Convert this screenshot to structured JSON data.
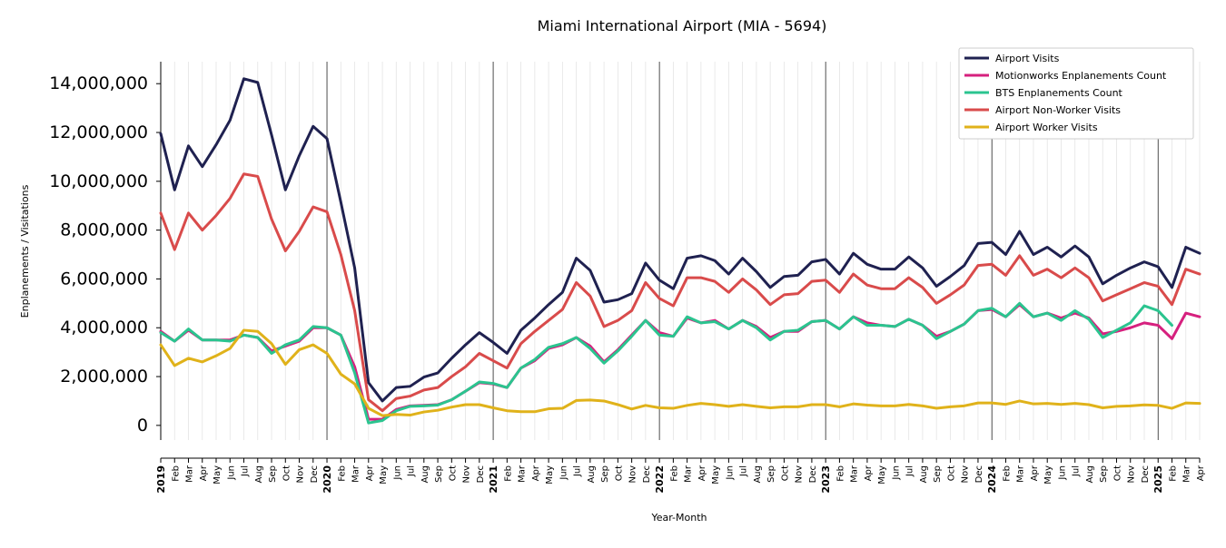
{
  "chart_data": {
    "type": "line",
    "title": "Miami International Airport (MIA - 5694)",
    "xlabel": "Year-Month",
    "ylabel": "Enplanements / Visitations",
    "ylim": [
      -600000,
      14900000
    ],
    "yticks": [
      0,
      2000000,
      4000000,
      6000000,
      8000000,
      10000000,
      12000000,
      14000000
    ],
    "ytick_labels": [
      "0",
      "2,000,000",
      "4,000,000",
      "6,000,000",
      "8,000,000",
      "10,000,000",
      "12,000,000",
      "14,000,000"
    ],
    "legend_position": "top-right",
    "grid": "vertical monthly lines, darker at year boundaries",
    "start_month": "2019-01",
    "x": [
      "2019",
      "Feb",
      "Mar",
      "Apr",
      "May",
      "Jun",
      "Jul",
      "Aug",
      "Sep",
      "Oct",
      "Nov",
      "Dec",
      "2020",
      "Feb",
      "Mar",
      "Apr",
      "May",
      "Jun",
      "Jul",
      "Aug",
      "Sep",
      "Oct",
      "Nov",
      "Dec",
      "2021",
      "Feb",
      "Mar",
      "Apr",
      "May",
      "Jun",
      "Jul",
      "Aug",
      "Sep",
      "Oct",
      "Nov",
      "Dec",
      "2022",
      "Feb",
      "Mar",
      "Apr",
      "May",
      "Jun",
      "Jul",
      "Aug",
      "Sep",
      "Oct",
      "Nov",
      "Dec",
      "2023",
      "Feb",
      "Mar",
      "Apr",
      "May",
      "Jun",
      "Jul",
      "Aug",
      "Sep",
      "Oct",
      "Nov",
      "Dec",
      "2024",
      "Feb",
      "Mar",
      "Apr",
      "May",
      "Jun",
      "Jul",
      "Aug",
      "Sep",
      "Oct",
      "Nov",
      "Dec",
      "2025",
      "Feb",
      "Mar",
      "Apr"
    ],
    "series": [
      {
        "name": "Airport Visits",
        "color": "#1f2150",
        "values": [
          11950000,
          9650000,
          11450000,
          10600000,
          11500000,
          12500000,
          14200000,
          14050000,
          11900000,
          9650000,
          11050000,
          12250000,
          11750000,
          9150000,
          6450000,
          1750000,
          1000000,
          1550000,
          1600000,
          1980000,
          2150000,
          2750000,
          3300000,
          3800000,
          3400000,
          2950000,
          3900000,
          4400000,
          4950000,
          5450000,
          6850000,
          6350000,
          5050000,
          5150000,
          5400000,
          6650000,
          5950000,
          5600000,
          6850000,
          6950000,
          6750000,
          6200000,
          6850000,
          6300000,
          5650000,
          6100000,
          6150000,
          6700000,
          6800000,
          6200000,
          7050000,
          6600000,
          6400000,
          6400000,
          6900000,
          6450000,
          5700000,
          6100000,
          6550000,
          7450000,
          7500000,
          7000000,
          7950000,
          7000000,
          7300000,
          6900000,
          7350000,
          6900000,
          5800000,
          6150000,
          6450000,
          6700000,
          6500000,
          5650000,
          7300000,
          7050000
        ]
      },
      {
        "name": "Motionworks Enplanements Count",
        "color": "#d6207e",
        "values": [
          3850000,
          3450000,
          3900000,
          3500000,
          3500000,
          3500000,
          3700000,
          3600000,
          3050000,
          3250000,
          3450000,
          4000000,
          4000000,
          3700000,
          2400000,
          250000,
          250000,
          650000,
          800000,
          820000,
          850000,
          1050000,
          1400000,
          1750000,
          1700000,
          1550000,
          2350000,
          2650000,
          3150000,
          3300000,
          3600000,
          3250000,
          2600000,
          3100000,
          3700000,
          4300000,
          3800000,
          3650000,
          4400000,
          4200000,
          4300000,
          3950000,
          4300000,
          4050000,
          3600000,
          3850000,
          3850000,
          4250000,
          4300000,
          3950000,
          4450000,
          4200000,
          4100000,
          4050000,
          4350000,
          4100000,
          3650000,
          3850000,
          4150000,
          4700000,
          4750000,
          4450000,
          4950000,
          4450000,
          4600000,
          4400000,
          4600000,
          4400000,
          3750000,
          3850000,
          4000000,
          4200000,
          4100000,
          3550000,
          4600000,
          4450000
        ]
      },
      {
        "name": "BTS Enplanements Count",
        "color": "#2bc48f",
        "values": [
          3800000,
          3450000,
          3950000,
          3500000,
          3500000,
          3450000,
          3700000,
          3600000,
          2950000,
          3300000,
          3500000,
          4050000,
          4000000,
          3700000,
          2150000,
          100000,
          200000,
          600000,
          780000,
          800000,
          830000,
          1050000,
          1400000,
          1780000,
          1720000,
          1550000,
          2350000,
          2700000,
          3200000,
          3350000,
          3600000,
          3150000,
          2550000,
          3050000,
          3650000,
          4300000,
          3700000,
          3650000,
          4450000,
          4200000,
          4250000,
          3950000,
          4300000,
          4000000,
          3500000,
          3850000,
          3900000,
          4250000,
          4300000,
          3950000,
          4450000,
          4100000,
          4100000,
          4050000,
          4350000,
          4100000,
          3550000,
          3850000,
          4150000,
          4700000,
          4800000,
          4450000,
          5000000,
          4450000,
          4600000,
          4300000,
          4700000,
          4350000,
          3600000,
          3900000,
          4200000,
          4900000,
          4700000,
          4100000,
          null,
          null
        ]
      },
      {
        "name": "Airport Non-Worker Visits",
        "color": "#d94b4b",
        "values": [
          8700000,
          7200000,
          8700000,
          8000000,
          8600000,
          9300000,
          10300000,
          10200000,
          8450000,
          7150000,
          7950000,
          8950000,
          8750000,
          7000000,
          4700000,
          1050000,
          600000,
          1100000,
          1200000,
          1450000,
          1550000,
          2000000,
          2400000,
          2950000,
          2650000,
          2350000,
          3350000,
          3850000,
          4300000,
          4750000,
          5850000,
          5300000,
          4050000,
          4300000,
          4700000,
          5850000,
          5200000,
          4900000,
          6050000,
          6050000,
          5900000,
          5450000,
          6000000,
          5550000,
          4950000,
          5350000,
          5400000,
          5900000,
          5950000,
          5450000,
          6200000,
          5750000,
          5600000,
          5600000,
          6050000,
          5650000,
          5000000,
          5350000,
          5750000,
          6550000,
          6600000,
          6150000,
          6950000,
          6150000,
          6400000,
          6050000,
          6450000,
          6050000,
          5100000,
          5350000,
          5600000,
          5850000,
          5700000,
          4950000,
          6400000,
          6200000
        ]
      },
      {
        "name": "Airport Worker Visits",
        "color": "#e0b21a",
        "values": [
          3300000,
          2450000,
          2750000,
          2600000,
          2850000,
          3150000,
          3900000,
          3850000,
          3350000,
          2500000,
          3100000,
          3300000,
          2950000,
          2100000,
          1700000,
          700000,
          400000,
          450000,
          420000,
          550000,
          620000,
          750000,
          850000,
          850000,
          720000,
          600000,
          560000,
          560000,
          680000,
          700000,
          1020000,
          1040000,
          1000000,
          850000,
          670000,
          820000,
          720000,
          700000,
          820000,
          900000,
          850000,
          780000,
          850000,
          780000,
          720000,
          760000,
          760000,
          850000,
          850000,
          760000,
          880000,
          830000,
          800000,
          800000,
          860000,
          800000,
          700000,
          760000,
          800000,
          920000,
          920000,
          860000,
          1000000,
          880000,
          900000,
          860000,
          900000,
          850000,
          720000,
          780000,
          800000,
          840000,
          820000,
          700000,
          920000,
          900000
        ]
      }
    ]
  }
}
